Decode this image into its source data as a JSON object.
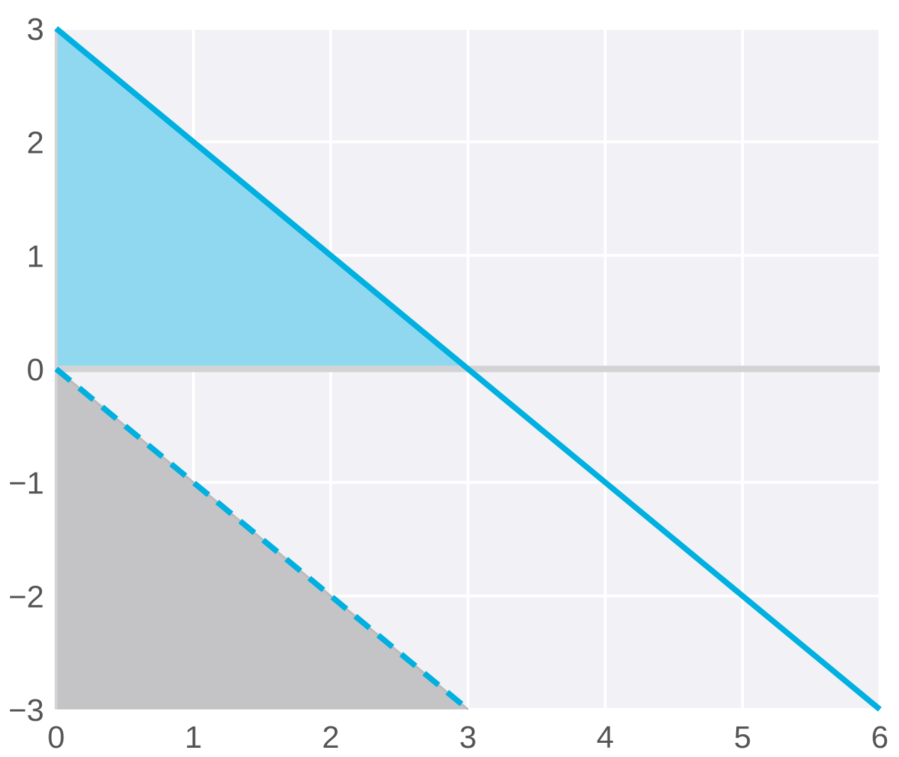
{
  "chart_data": {
    "type": "line",
    "title": "",
    "xlabel": "",
    "ylabel": "",
    "xlim": [
      0,
      6
    ],
    "ylim": [
      -3,
      3
    ],
    "grid": true,
    "x_ticks": [
      0,
      1,
      2,
      3,
      4,
      5,
      6
    ],
    "x_tick_labels": [
      "0",
      "1",
      "2",
      "3",
      "4",
      "5",
      "6"
    ],
    "y_ticks": [
      -3,
      -2,
      -1,
      0,
      1,
      2,
      3
    ],
    "y_tick_labels": [
      "−3",
      "−2",
      "−1",
      "0",
      "1",
      "2",
      "3"
    ],
    "series": [
      {
        "style": "solid",
        "color": "#00b0e0",
        "points": [
          [
            0,
            3
          ],
          [
            6,
            -3
          ]
        ]
      },
      {
        "style": "dashed",
        "color": "#00b0e0",
        "points": [
          [
            0,
            0
          ],
          [
            3,
            -3
          ]
        ]
      },
      {
        "style": "solid",
        "color": "#bbbbbb",
        "points": [
          [
            0,
            0
          ],
          [
            3,
            -3
          ]
        ]
      }
    ],
    "reference_lines": [
      {
        "axis": "y",
        "value": 0,
        "color": "#d3d3d3"
      }
    ],
    "filled_regions": [
      {
        "color": "#90d8f0",
        "polygon": [
          [
            0,
            0
          ],
          [
            0,
            3
          ],
          [
            3,
            0
          ]
        ]
      },
      {
        "color": "#c4c4c6",
        "polygon": [
          [
            0,
            0
          ],
          [
            3,
            -3
          ],
          [
            0,
            -3
          ]
        ]
      }
    ],
    "colors": {
      "plot_background": "#f1f1f6",
      "grid": "#ffffff",
      "axis_line": "#d3d3d3",
      "tick_text": "#555555"
    }
  }
}
